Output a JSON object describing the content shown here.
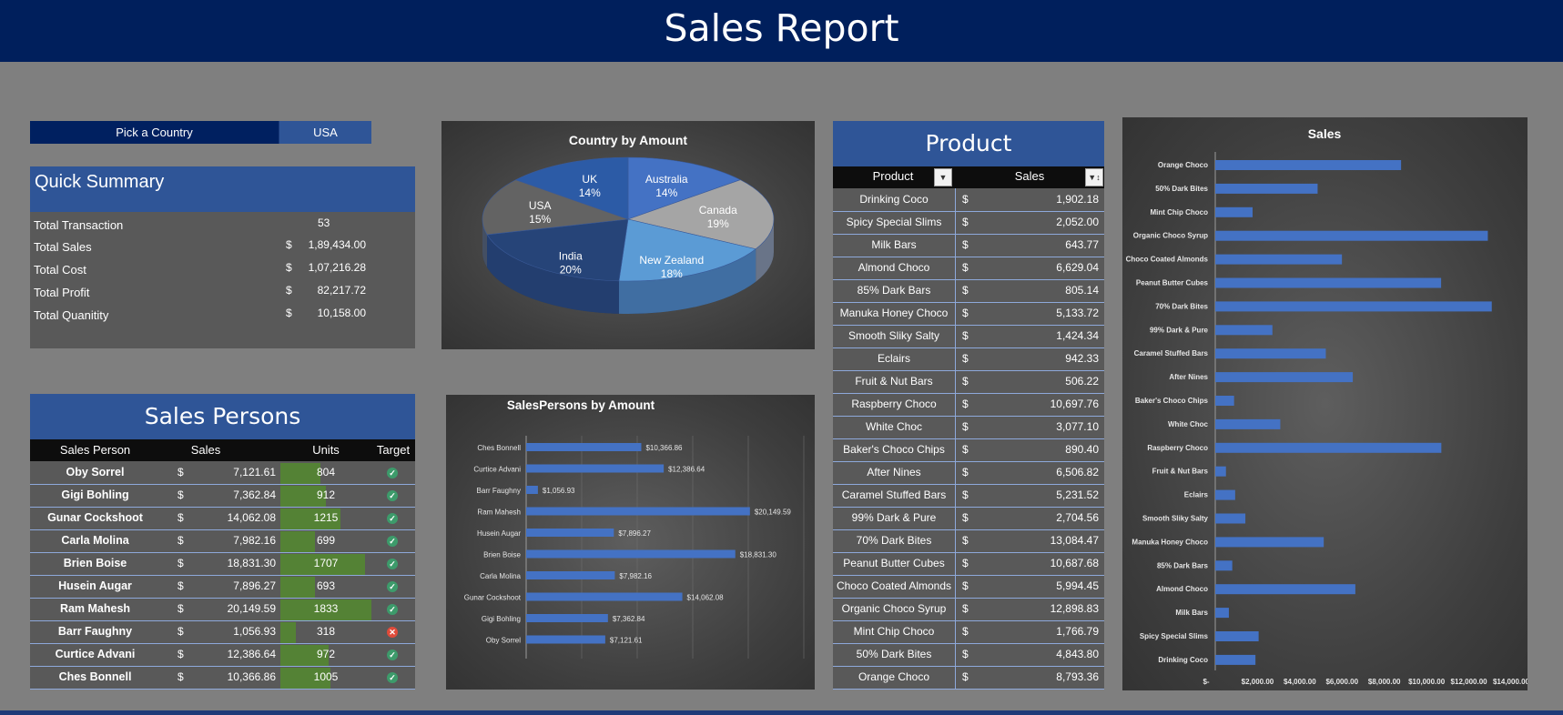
{
  "header": {
    "title": "Sales Report"
  },
  "picker": {
    "label": "Pick a Country",
    "value": "USA"
  },
  "quick_summary": {
    "title": "Quick Summary",
    "rows": [
      {
        "label": "Total Transaction",
        "currency": "",
        "value": "53"
      },
      {
        "label": "Total Sales",
        "currency": "$",
        "value": "1,89,434.00"
      },
      {
        "label": "Total Cost",
        "currency": "$",
        "value": "1,07,216.28"
      },
      {
        "label": "Total Profit",
        "currency": "$",
        "value": "82,217.72"
      },
      {
        "label": "Total Quanitity",
        "currency": "$",
        "value": "10,158.00"
      }
    ]
  },
  "country_chart": {
    "title": "Country by Amount",
    "chart_data": {
      "type": "pie",
      "title": "Country by Amount",
      "slices": [
        {
          "label": "Australia",
          "value": 14,
          "pct": "14%",
          "color": "#4472c4"
        },
        {
          "label": "Canada",
          "value": 19,
          "pct": "19%",
          "color": "#a5a5a5"
        },
        {
          "label": "New Zealand",
          "value": 18,
          "pct": "18%",
          "color": "#5b9bd5"
        },
        {
          "label": "India",
          "value": 20,
          "pct": "20%",
          "color": "#264478"
        },
        {
          "label": "USA",
          "value": 15,
          "pct": "15%",
          "color": "#636363"
        },
        {
          "label": "UK",
          "value": 14,
          "pct": "14%",
          "color": "#2c5ba6"
        }
      ]
    }
  },
  "salespersons_chart": {
    "title": "SalesPersons by Amount",
    "chart_data": {
      "type": "bar",
      "orientation": "horizontal",
      "title": "SalesPersons by Amount",
      "categories": [
        "Ches Bonnell",
        "Curtice Advani",
        "Barr Faughny",
        "Ram Mahesh",
        "Husein Augar",
        "Brien Boise",
        "Carla Molina",
        "Gunar Cockshoot",
        "Gigi Bohling",
        "Oby Sorrel"
      ],
      "values": [
        10366.86,
        12386.64,
        1056.93,
        20149.59,
        7896.27,
        18831.3,
        7982.16,
        14062.08,
        7362.84,
        7121.61
      ],
      "labels": [
        "$10,366.86",
        "$12,386.64",
        "$1,056.93",
        "$20,149.59",
        "$7,896.27",
        "$18,831.30",
        "$7,982.16",
        "$14,062.08",
        "$7,362.84",
        "$7,121.61"
      ],
      "xlim": [
        0,
        25000
      ],
      "color": "#4472c4"
    }
  },
  "sales_persons": {
    "title": "Sales Persons",
    "headers": [
      "Sales Person",
      "Sales",
      "Units",
      "Target"
    ],
    "rows": [
      {
        "name": "Oby Sorrel",
        "currency": "$",
        "sales": "7,121.61",
        "units": "804",
        "units_value": 804,
        "target_met": true
      },
      {
        "name": "Gigi Bohling",
        "currency": "$",
        "sales": "7,362.84",
        "units": "912",
        "units_value": 912,
        "target_met": true
      },
      {
        "name": "Gunar Cockshoot",
        "currency": "$",
        "sales": "14,062.08",
        "units": "1215",
        "units_value": 1215,
        "target_met": true
      },
      {
        "name": "Carla Molina",
        "currency": "$",
        "sales": "7,982.16",
        "units": "699",
        "units_value": 699,
        "target_met": true
      },
      {
        "name": "Brien Boise",
        "currency": "$",
        "sales": "18,831.30",
        "units": "1707",
        "units_value": 1707,
        "target_met": true
      },
      {
        "name": "Husein Augar",
        "currency": "$",
        "sales": "7,896.27",
        "units": "693",
        "units_value": 693,
        "target_met": true
      },
      {
        "name": "Ram Mahesh",
        "currency": "$",
        "sales": "20,149.59",
        "units": "1833",
        "units_value": 1833,
        "target_met": true
      },
      {
        "name": "Barr Faughny",
        "currency": "$",
        "sales": "1,056.93",
        "units": "318",
        "units_value": 318,
        "target_met": false
      },
      {
        "name": "Curtice Advani",
        "currency": "$",
        "sales": "12,386.64",
        "units": "972",
        "units_value": 972,
        "target_met": true
      },
      {
        "name": "Ches Bonnell",
        "currency": "$",
        "sales": "10,366.86",
        "units": "1005",
        "units_value": 1005,
        "target_met": true
      }
    ],
    "units_max": 1833,
    "colors": {
      "met": "#3d9b6b",
      "missed": "#e04b3a",
      "units_bar": "#548235"
    }
  },
  "product": {
    "title": "Product",
    "headers": [
      "Product",
      "Sales"
    ],
    "rows": [
      {
        "name": "Drinking Coco",
        "currency": "$",
        "sales": "1,902.18"
      },
      {
        "name": "Spicy Special Slims",
        "currency": "$",
        "sales": "2,052.00"
      },
      {
        "name": "Milk Bars",
        "currency": "$",
        "sales": "643.77"
      },
      {
        "name": "Almond Choco",
        "currency": "$",
        "sales": "6,629.04"
      },
      {
        "name": "85% Dark Bars",
        "currency": "$",
        "sales": "805.14"
      },
      {
        "name": "Manuka Honey Choco",
        "currency": "$",
        "sales": "5,133.72"
      },
      {
        "name": "Smooth Sliky Salty",
        "currency": "$",
        "sales": "1,424.34"
      },
      {
        "name": "Eclairs",
        "currency": "$",
        "sales": "942.33"
      },
      {
        "name": "Fruit & Nut Bars",
        "currency": "$",
        "sales": "506.22"
      },
      {
        "name": "Raspberry Choco",
        "currency": "$",
        "sales": "10,697.76"
      },
      {
        "name": "White Choc",
        "currency": "$",
        "sales": "3,077.10"
      },
      {
        "name": "Baker's Choco Chips",
        "currency": "$",
        "sales": "890.40"
      },
      {
        "name": "After Nines",
        "currency": "$",
        "sales": "6,506.82"
      },
      {
        "name": "Caramel Stuffed Bars",
        "currency": "$",
        "sales": "5,231.52"
      },
      {
        "name": "99% Dark & Pure",
        "currency": "$",
        "sales": "2,704.56"
      },
      {
        "name": "70% Dark Bites",
        "currency": "$",
        "sales": "13,084.47"
      },
      {
        "name": "Peanut Butter Cubes",
        "currency": "$",
        "sales": "10,687.68"
      },
      {
        "name": "Choco Coated Almonds",
        "currency": "$",
        "sales": "5,994.45"
      },
      {
        "name": "Organic Choco Syrup",
        "currency": "$",
        "sales": "12,898.83"
      },
      {
        "name": "Mint Chip Choco",
        "currency": "$",
        "sales": "1,766.79"
      },
      {
        "name": "50% Dark Bites",
        "currency": "$",
        "sales": "4,843.80"
      },
      {
        "name": "Orange Choco",
        "currency": "$",
        "sales": "8,793.36"
      }
    ]
  },
  "sales_chart": {
    "title": "Sales",
    "chart_data": {
      "type": "bar",
      "orientation": "horizontal",
      "title": "Sales",
      "categories": [
        "Orange Choco",
        "50% Dark Bites",
        "Mint Chip Choco",
        "Organic Choco Syrup",
        "Choco Coated Almonds",
        "Peanut Butter Cubes",
        "70% Dark Bites",
        "99% Dark & Pure",
        "Caramel Stuffed Bars",
        "After Nines",
        "Baker's Choco Chips",
        "White Choc",
        "Raspberry Choco",
        "Fruit & Nut Bars",
        "Eclairs",
        "Smooth Sliky Salty",
        "Manuka Honey Choco",
        "85% Dark Bars",
        "Almond Choco",
        "Milk Bars",
        "Spicy Special Slims",
        "Drinking Coco"
      ],
      "values": [
        8793.36,
        4843.8,
        1766.79,
        12898.83,
        5994.45,
        10687.68,
        13084.47,
        2704.56,
        5231.52,
        6506.82,
        890.4,
        3077.1,
        10697.76,
        506.22,
        942.33,
        1424.34,
        5133.72,
        805.14,
        6629.04,
        643.77,
        2052.0,
        1902.18
      ],
      "xticks": [
        "$-",
        "$2,000.00",
        "$4,000.00",
        "$6,000.00",
        "$8,000.00",
        "$10,000.00",
        "$12,000.00",
        "$14,000.00"
      ],
      "xlim": [
        0,
        14000
      ],
      "color": "#4472c4"
    }
  }
}
